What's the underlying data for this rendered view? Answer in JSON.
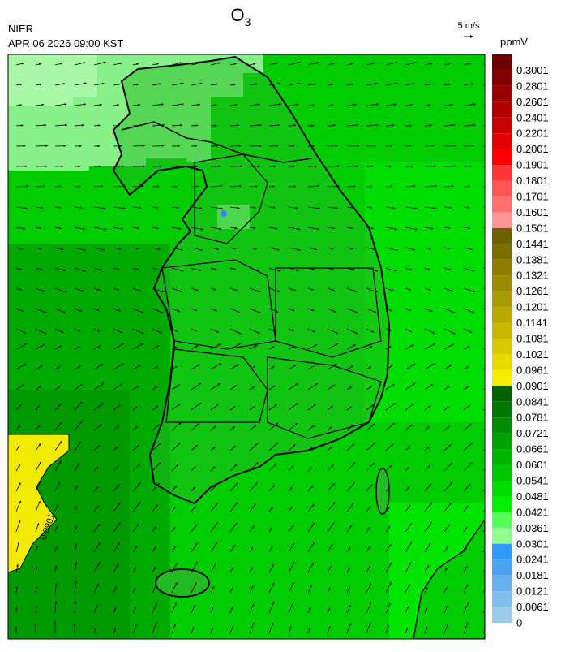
{
  "header": {
    "title": {
      "base": "O",
      "subscript": "3"
    },
    "source": "NIER",
    "datetime": "APR 06 2026 09:00 KST"
  },
  "wind_reference": "5 m/s",
  "colorbar": {
    "unit": "ppmV",
    "labels": [
      0.3001,
      0.2801,
      0.2601,
      0.2401,
      0.2201,
      0.2001,
      0.1901,
      0.1801,
      0.1701,
      0.1601,
      0.1501,
      0.1441,
      0.1381,
      0.1321,
      0.1261,
      0.1201,
      0.1141,
      0.1081,
      0.1021,
      0.0961,
      0.0901,
      0.0841,
      0.0781,
      0.0721,
      0.0661,
      0.0601,
      0.0541,
      0.0481,
      0.0421,
      0.0361,
      0.0301,
      0.0241,
      0.0181,
      0.0121,
      0.0061,
      0
    ],
    "colors": [
      "#6e0000",
      "#820000",
      "#990000",
      "#b00000",
      "#c80000",
      "#e00000",
      "#ff0000",
      "#ff3535",
      "#ff5555",
      "#ff7070",
      "#ff9595",
      "#6b6000",
      "#7a6e00",
      "#8a7d00",
      "#998c00",
      "#a89a00",
      "#b8a800",
      "#c8b800",
      "#d8c800",
      "#e8da00",
      "#f5ec00",
      "#006400",
      "#007800",
      "#008c00",
      "#00a000",
      "#00b400",
      "#00c800",
      "#00dc00",
      "#00f000",
      "#55ff55",
      "#90ff90",
      "#3399ff",
      "#4aa3f0",
      "#66b0ee",
      "#80bdea",
      "#9ccae8"
    ]
  },
  "contour_label": "0.0901"
}
